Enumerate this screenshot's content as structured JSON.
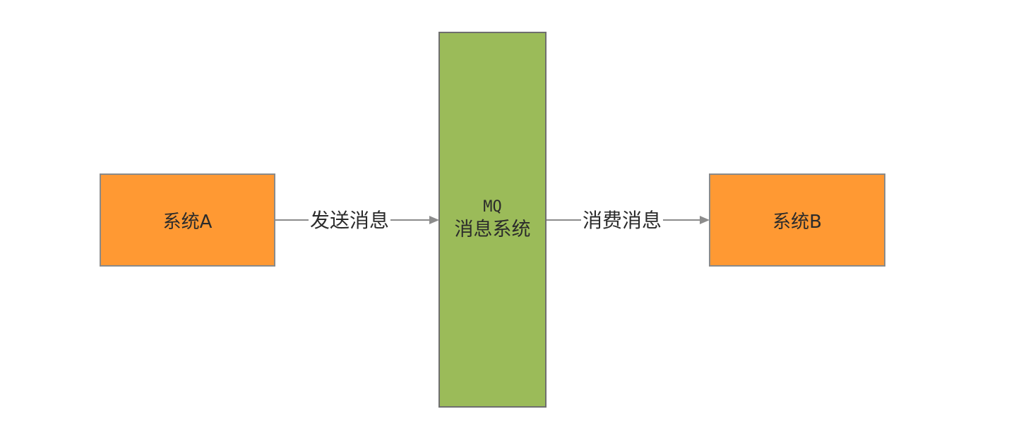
{
  "nodes": {
    "system_a": {
      "label": "系统A",
      "fill": "#FF9933"
    },
    "mq": {
      "title": "MQ",
      "subtitle": "消息系统",
      "fill": "#9BBB59"
    },
    "system_b": {
      "label": "系统B",
      "fill": "#FF9933"
    }
  },
  "edges": {
    "send": {
      "label": "发送消息"
    },
    "consume": {
      "label": "消费消息"
    }
  },
  "colors": {
    "edge_line": "#8c8c8c",
    "border": "#8a8a8a"
  }
}
